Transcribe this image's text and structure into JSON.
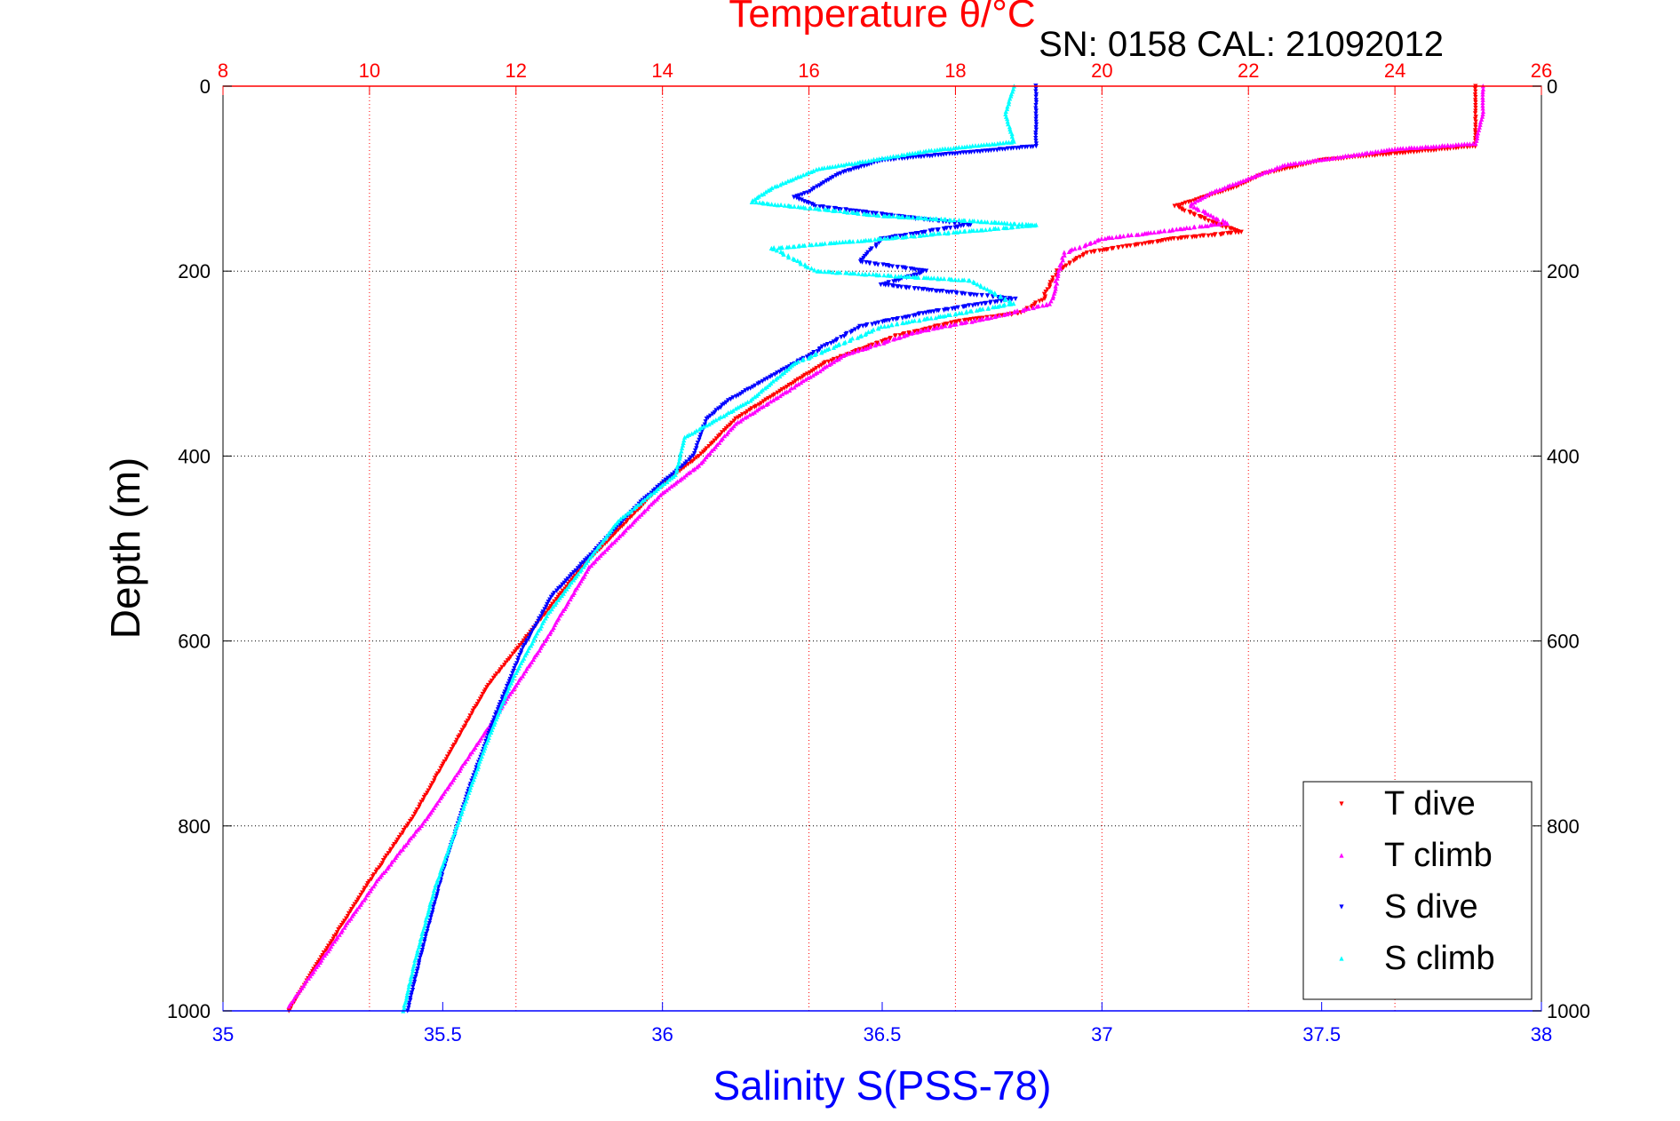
{
  "chart_data": {
    "type": "scatter",
    "title": "Temperature θ/°C",
    "annotation": "SN: 0158  CAL: 21092012",
    "ylabel": "Depth (m)",
    "xlabel_bottom": "Salinity S(PSS-78)",
    "xlabel_top": "Temperature θ/°C",
    "ylim": [
      0,
      1000
    ],
    "y_reversed": true,
    "x_bottom_lim": [
      35,
      38
    ],
    "x_top_lim": [
      8,
      26
    ],
    "y_ticks": [
      "0",
      "200",
      "400",
      "600",
      "800",
      "1000"
    ],
    "x_bottom_ticks": [
      "35",
      "35.5",
      "36",
      "36.5",
      "37",
      "37.5",
      "38"
    ],
    "x_top_ticks": [
      "8",
      "10",
      "12",
      "14",
      "16",
      "18",
      "20",
      "22",
      "24",
      "26"
    ],
    "grid": true,
    "legend_position": "bottom-right",
    "colors": {
      "temperature_axis": "#ff0000",
      "salinity_axis": "#0000ff",
      "t_dive": "#ff0000",
      "t_climb": "#ff00ff",
      "s_dive": "#0000ff",
      "s_climb": "#00ffff"
    },
    "series": [
      {
        "name": "T dive",
        "axis": "top",
        "marker": "triangle-down",
        "color": "#ff0000",
        "points": [
          [
            25.1,
            0
          ],
          [
            25.1,
            30
          ],
          [
            25.1,
            65
          ],
          [
            23.0,
            80
          ],
          [
            22.2,
            95
          ],
          [
            21.8,
            110
          ],
          [
            21.0,
            130
          ],
          [
            21.6,
            150
          ],
          [
            21.9,
            158
          ],
          [
            21.0,
            165
          ],
          [
            19.8,
            180
          ],
          [
            19.4,
            200
          ],
          [
            19.2,
            230
          ],
          [
            18.9,
            245
          ],
          [
            18.0,
            255
          ],
          [
            17.2,
            270
          ],
          [
            16.2,
            300
          ],
          [
            15.6,
            330
          ],
          [
            15.0,
            360
          ],
          [
            14.5,
            400
          ],
          [
            14.0,
            430
          ],
          [
            13.4,
            480
          ],
          [
            12.9,
            520
          ],
          [
            12.5,
            560
          ],
          [
            12.1,
            600
          ],
          [
            11.6,
            650
          ],
          [
            11.1,
            720
          ],
          [
            10.6,
            790
          ],
          [
            10.0,
            860
          ],
          [
            9.6,
            910
          ],
          [
            9.2,
            960
          ],
          [
            8.9,
            1000
          ]
        ]
      },
      {
        "name": "T climb",
        "axis": "top",
        "marker": "triangle-up",
        "color": "#ff00ff",
        "points": [
          [
            25.2,
            0
          ],
          [
            25.2,
            30
          ],
          [
            25.1,
            62
          ],
          [
            24.0,
            68
          ],
          [
            22.5,
            85
          ],
          [
            21.5,
            115
          ],
          [
            21.2,
            128
          ],
          [
            21.7,
            148
          ],
          [
            20.0,
            165
          ],
          [
            19.5,
            180
          ],
          [
            19.4,
            205
          ],
          [
            19.3,
            235
          ],
          [
            18.5,
            250
          ],
          [
            17.5,
            265
          ],
          [
            16.5,
            290
          ],
          [
            15.7,
            330
          ],
          [
            15.0,
            365
          ],
          [
            14.5,
            410
          ],
          [
            14.0,
            440
          ],
          [
            13.5,
            480
          ],
          [
            13.0,
            520
          ],
          [
            12.7,
            560
          ],
          [
            12.4,
            600
          ],
          [
            11.9,
            660
          ],
          [
            11.4,
            720
          ],
          [
            10.8,
            790
          ],
          [
            10.1,
            860
          ],
          [
            9.7,
            905
          ],
          [
            9.3,
            950
          ],
          [
            8.9,
            995
          ]
        ]
      },
      {
        "name": "S dive",
        "axis": "bottom",
        "marker": "triangle-down",
        "color": "#0000ff",
        "points": [
          [
            36.85,
            0
          ],
          [
            36.85,
            30
          ],
          [
            36.85,
            65
          ],
          [
            36.5,
            80
          ],
          [
            36.4,
            95
          ],
          [
            36.33,
            115
          ],
          [
            36.3,
            120
          ],
          [
            36.35,
            130
          ],
          [
            36.7,
            150
          ],
          [
            36.5,
            165
          ],
          [
            36.45,
            190
          ],
          [
            36.6,
            200
          ],
          [
            36.5,
            215
          ],
          [
            36.8,
            230
          ],
          [
            36.6,
            245
          ],
          [
            36.45,
            260
          ],
          [
            36.3,
            300
          ],
          [
            36.15,
            340
          ],
          [
            36.1,
            360
          ],
          [
            36.07,
            400
          ],
          [
            35.95,
            450
          ],
          [
            35.85,
            500
          ],
          [
            35.75,
            550
          ],
          [
            35.68,
            610
          ],
          [
            35.62,
            680
          ],
          [
            35.56,
            760
          ],
          [
            35.5,
            850
          ],
          [
            35.45,
            940
          ],
          [
            35.42,
            1000
          ]
        ]
      },
      {
        "name": "S climb",
        "axis": "bottom",
        "marker": "triangle-up",
        "color": "#00ffff",
        "points": [
          [
            36.8,
            0
          ],
          [
            36.78,
            30
          ],
          [
            36.8,
            60
          ],
          [
            36.6,
            70
          ],
          [
            36.35,
            90
          ],
          [
            36.25,
            110
          ],
          [
            36.2,
            125
          ],
          [
            36.5,
            140
          ],
          [
            36.85,
            150
          ],
          [
            36.5,
            165
          ],
          [
            36.25,
            175
          ],
          [
            36.35,
            200
          ],
          [
            36.7,
            210
          ],
          [
            36.8,
            235
          ],
          [
            36.5,
            260
          ],
          [
            36.3,
            300
          ],
          [
            36.2,
            340
          ],
          [
            36.05,
            380
          ],
          [
            36.03,
            420
          ],
          [
            35.9,
            470
          ],
          [
            35.82,
            520
          ],
          [
            35.74,
            570
          ],
          [
            35.66,
            640
          ],
          [
            35.6,
            710
          ],
          [
            35.54,
            790
          ],
          [
            35.48,
            870
          ],
          [
            35.44,
            940
          ],
          [
            35.41,
            1000
          ]
        ]
      }
    ]
  }
}
